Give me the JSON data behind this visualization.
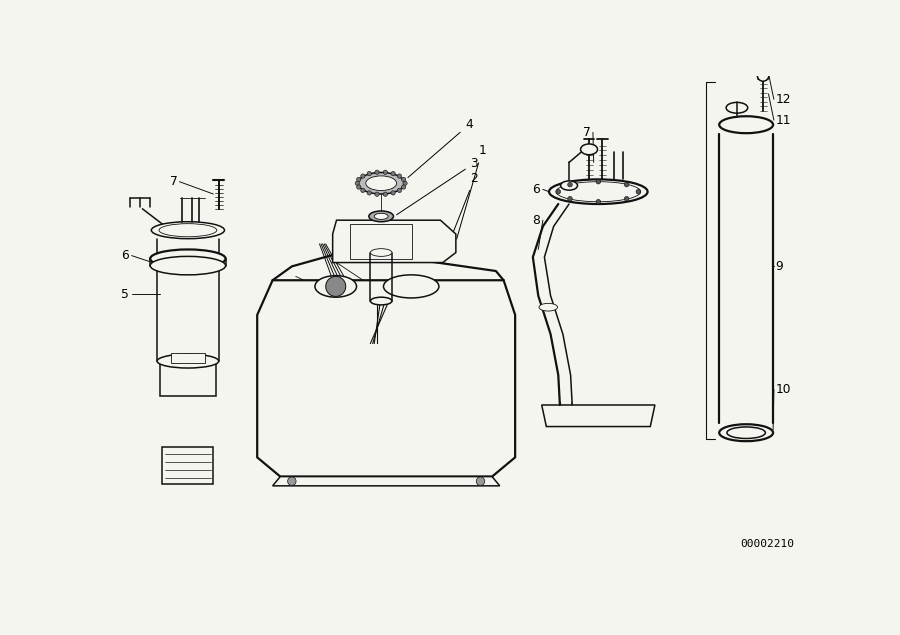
{
  "background_color": "#f5f5f0",
  "line_color": "#111111",
  "diagram_id": "00002210",
  "fig_width": 9.0,
  "fig_height": 6.35,
  "lw_main": 1.1,
  "lw_thick": 1.6,
  "lw_thin": 0.6
}
